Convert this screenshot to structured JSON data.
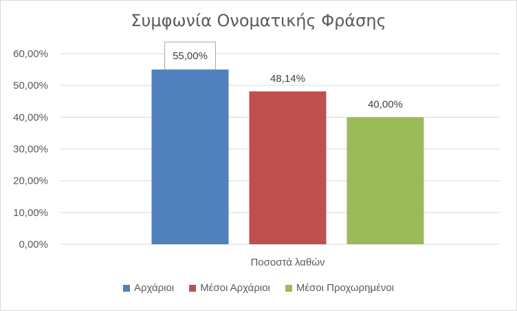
{
  "chart_data": {
    "type": "bar",
    "title": "Συμφωνία Ονοματικής Φράσης",
    "categories": [
      "Ποσοστά λαθών"
    ],
    "series": [
      {
        "name": "Αρχάριοι",
        "values": [
          55.0
        ],
        "label": "55,00%",
        "color": "#4f81bd"
      },
      {
        "name": "Μέσοι Αρχάριοι",
        "values": [
          48.14
        ],
        "label": "48,14%",
        "color": "#c0504d"
      },
      {
        "name": "Μέσοι Προχωρημένοι",
        "values": [
          40.0
        ],
        "label": "40,00%",
        "color": "#9bbb59"
      }
    ],
    "ylim": [
      0,
      60
    ],
    "yticks": [
      "0,00%",
      "10,00%",
      "20,00%",
      "30,00%",
      "40,00%",
      "50,00%",
      "60,00%"
    ],
    "grid": true,
    "legend": "bottom",
    "highlighted_label": "55,00%"
  }
}
